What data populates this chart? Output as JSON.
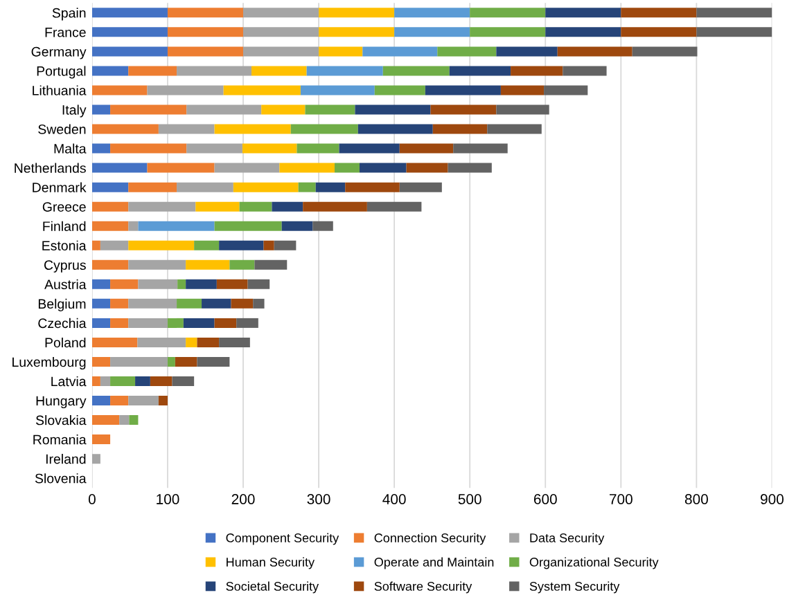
{
  "chart_data": {
    "type": "bar",
    "orientation": "horizontal",
    "stacked": true,
    "categories": [
      "Spain",
      "France",
      "Germany",
      "Portugal",
      "Lithuania",
      "Italy",
      "Sweden",
      "Malta",
      "Netherlands",
      "Denmark",
      "Greece",
      "Finland",
      "Estonia",
      "Cyprus",
      "Austria",
      "Belgium",
      "Czechia",
      "Poland",
      "Luxembourg",
      "Latvia",
      "Hungary",
      "Slovakia",
      "Romania",
      "Ireland",
      "Slovenia"
    ],
    "series": [
      {
        "name": "Component Security",
        "color": "#4472c4",
        "values": [
          100,
          100,
          100,
          48,
          0,
          24,
          0,
          24,
          73,
          48,
          0,
          0,
          0,
          0,
          24,
          24,
          24,
          0,
          0,
          0,
          24,
          0,
          0,
          0,
          0
        ]
      },
      {
        "name": "Connection Security",
        "color": "#ed7d31",
        "values": [
          100,
          100,
          100,
          64,
          73,
          101,
          88,
          101,
          89,
          64,
          48,
          48,
          11,
          48,
          37,
          24,
          24,
          60,
          24,
          11,
          24,
          36,
          24,
          0,
          0
        ]
      },
      {
        "name": "Data Security",
        "color": "#a5a5a5",
        "values": [
          100,
          100,
          100,
          99,
          101,
          99,
          74,
          74,
          86,
          75,
          89,
          13,
          37,
          76,
          52,
          64,
          52,
          64,
          76,
          13,
          40,
          13,
          0,
          11,
          0
        ]
      },
      {
        "name": "Human Security",
        "color": "#ffc000",
        "values": [
          100,
          100,
          58,
          73,
          102,
          58,
          101,
          72,
          73,
          86,
          58,
          0,
          87,
          58,
          0,
          0,
          0,
          15,
          0,
          0,
          0,
          0,
          0,
          0,
          0
        ]
      },
      {
        "name": "Operate and Maintain",
        "color": "#5b9bd5",
        "values": [
          100,
          100,
          99,
          101,
          98,
          0,
          0,
          0,
          0,
          0,
          0,
          101,
          0,
          0,
          0,
          0,
          0,
          0,
          0,
          0,
          0,
          0,
          0,
          0,
          0
        ]
      },
      {
        "name": "Organizational Security",
        "color": "#70ad47",
        "values": [
          100,
          100,
          78,
          88,
          67,
          66,
          89,
          56,
          33,
          23,
          43,
          89,
          33,
          33,
          11,
          33,
          21,
          0,
          10,
          33,
          0,
          12,
          0,
          0,
          0
        ]
      },
      {
        "name": "Societal Security",
        "color": "#264478",
        "values": [
          100,
          100,
          81,
          81,
          100,
          100,
          99,
          80,
          62,
          39,
          41,
          41,
          59,
          0,
          41,
          39,
          41,
          0,
          0,
          20,
          0,
          0,
          0,
          0,
          0
        ]
      },
      {
        "name": "Software Security",
        "color": "#9e480e",
        "values": [
          100,
          100,
          99,
          69,
          57,
          87,
          72,
          71,
          55,
          72,
          85,
          0,
          14,
          0,
          41,
          29,
          29,
          29,
          29,
          29,
          12,
          0,
          0,
          0,
          0
        ]
      },
      {
        "name": "System Security",
        "color": "#636363",
        "values": [
          100,
          100,
          86,
          58,
          58,
          70,
          72,
          72,
          58,
          56,
          72,
          27,
          29,
          43,
          29,
          15,
          29,
          41,
          43,
          29,
          0,
          0,
          0,
          0,
          0
        ]
      }
    ],
    "xlim": [
      0,
      900
    ],
    "xticks": [
      0,
      100,
      200,
      300,
      400,
      500,
      600,
      700,
      800,
      900
    ],
    "grid": "x",
    "legend": "bottom"
  }
}
